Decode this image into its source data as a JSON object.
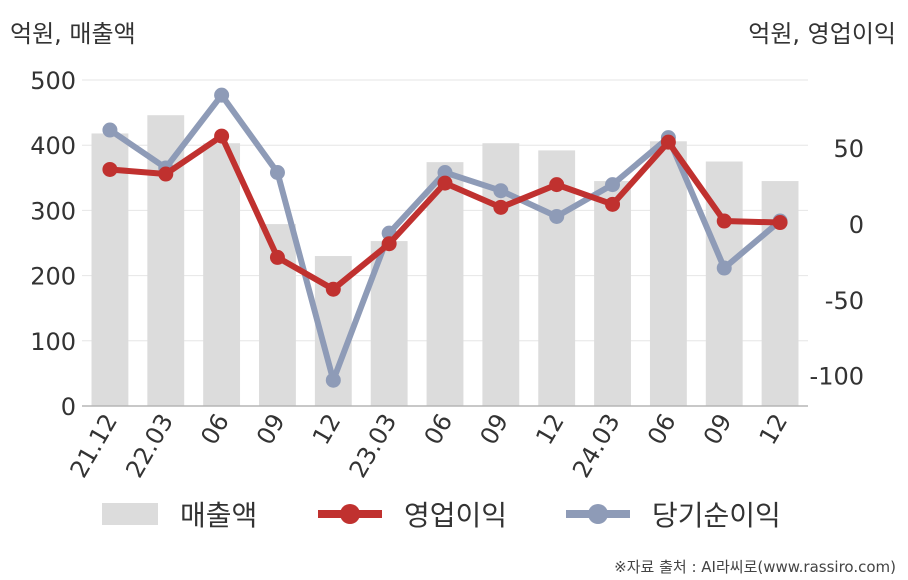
{
  "chart_data": {
    "type": "bar+line",
    "categories": [
      "21.12",
      "22.03",
      "06",
      "09",
      "12",
      "23.03",
      "06",
      "09",
      "12",
      "24.03",
      "06",
      "09",
      "12"
    ],
    "left_axis": {
      "label": "억원, 매출액",
      "ylim": [
        0,
        500
      ],
      "ticks": [
        "0",
        "100",
        "200",
        "300",
        "400",
        "500"
      ],
      "tick_values": [
        0,
        100,
        200,
        300,
        400,
        500
      ]
    },
    "right_axis": {
      "label": "억원, 영업이익",
      "ylim": [
        -120,
        95
      ],
      "ticks": [
        "-100",
        "-50",
        "0",
        "50"
      ],
      "tick_values": [
        -100,
        -50,
        0,
        50
      ]
    },
    "series": [
      {
        "name": "매출액",
        "type": "bar",
        "axis": "left",
        "color": "#dcdcdc",
        "values": [
          418,
          446,
          403,
          279,
          230,
          253,
          374,
          403,
          392,
          345,
          406,
          375,
          345
        ]
      },
      {
        "name": "영업이익",
        "type": "line",
        "axis": "right",
        "color": "#c0312f",
        "values": [
          36,
          33,
          58,
          -22,
          -43,
          -13,
          27,
          11,
          26,
          13,
          54,
          2,
          1
        ]
      },
      {
        "name": "당기순이익",
        "type": "line",
        "axis": "right",
        "color": "#8e9bb7",
        "values": [
          62,
          37,
          85,
          34,
          -103,
          -6,
          34,
          22,
          5,
          26,
          57,
          -29,
          2
        ]
      }
    ],
    "grid": true,
    "legend_position": "bottom"
  },
  "source": "※자료 출처 : AI라씨로(www.rassiro.com)"
}
